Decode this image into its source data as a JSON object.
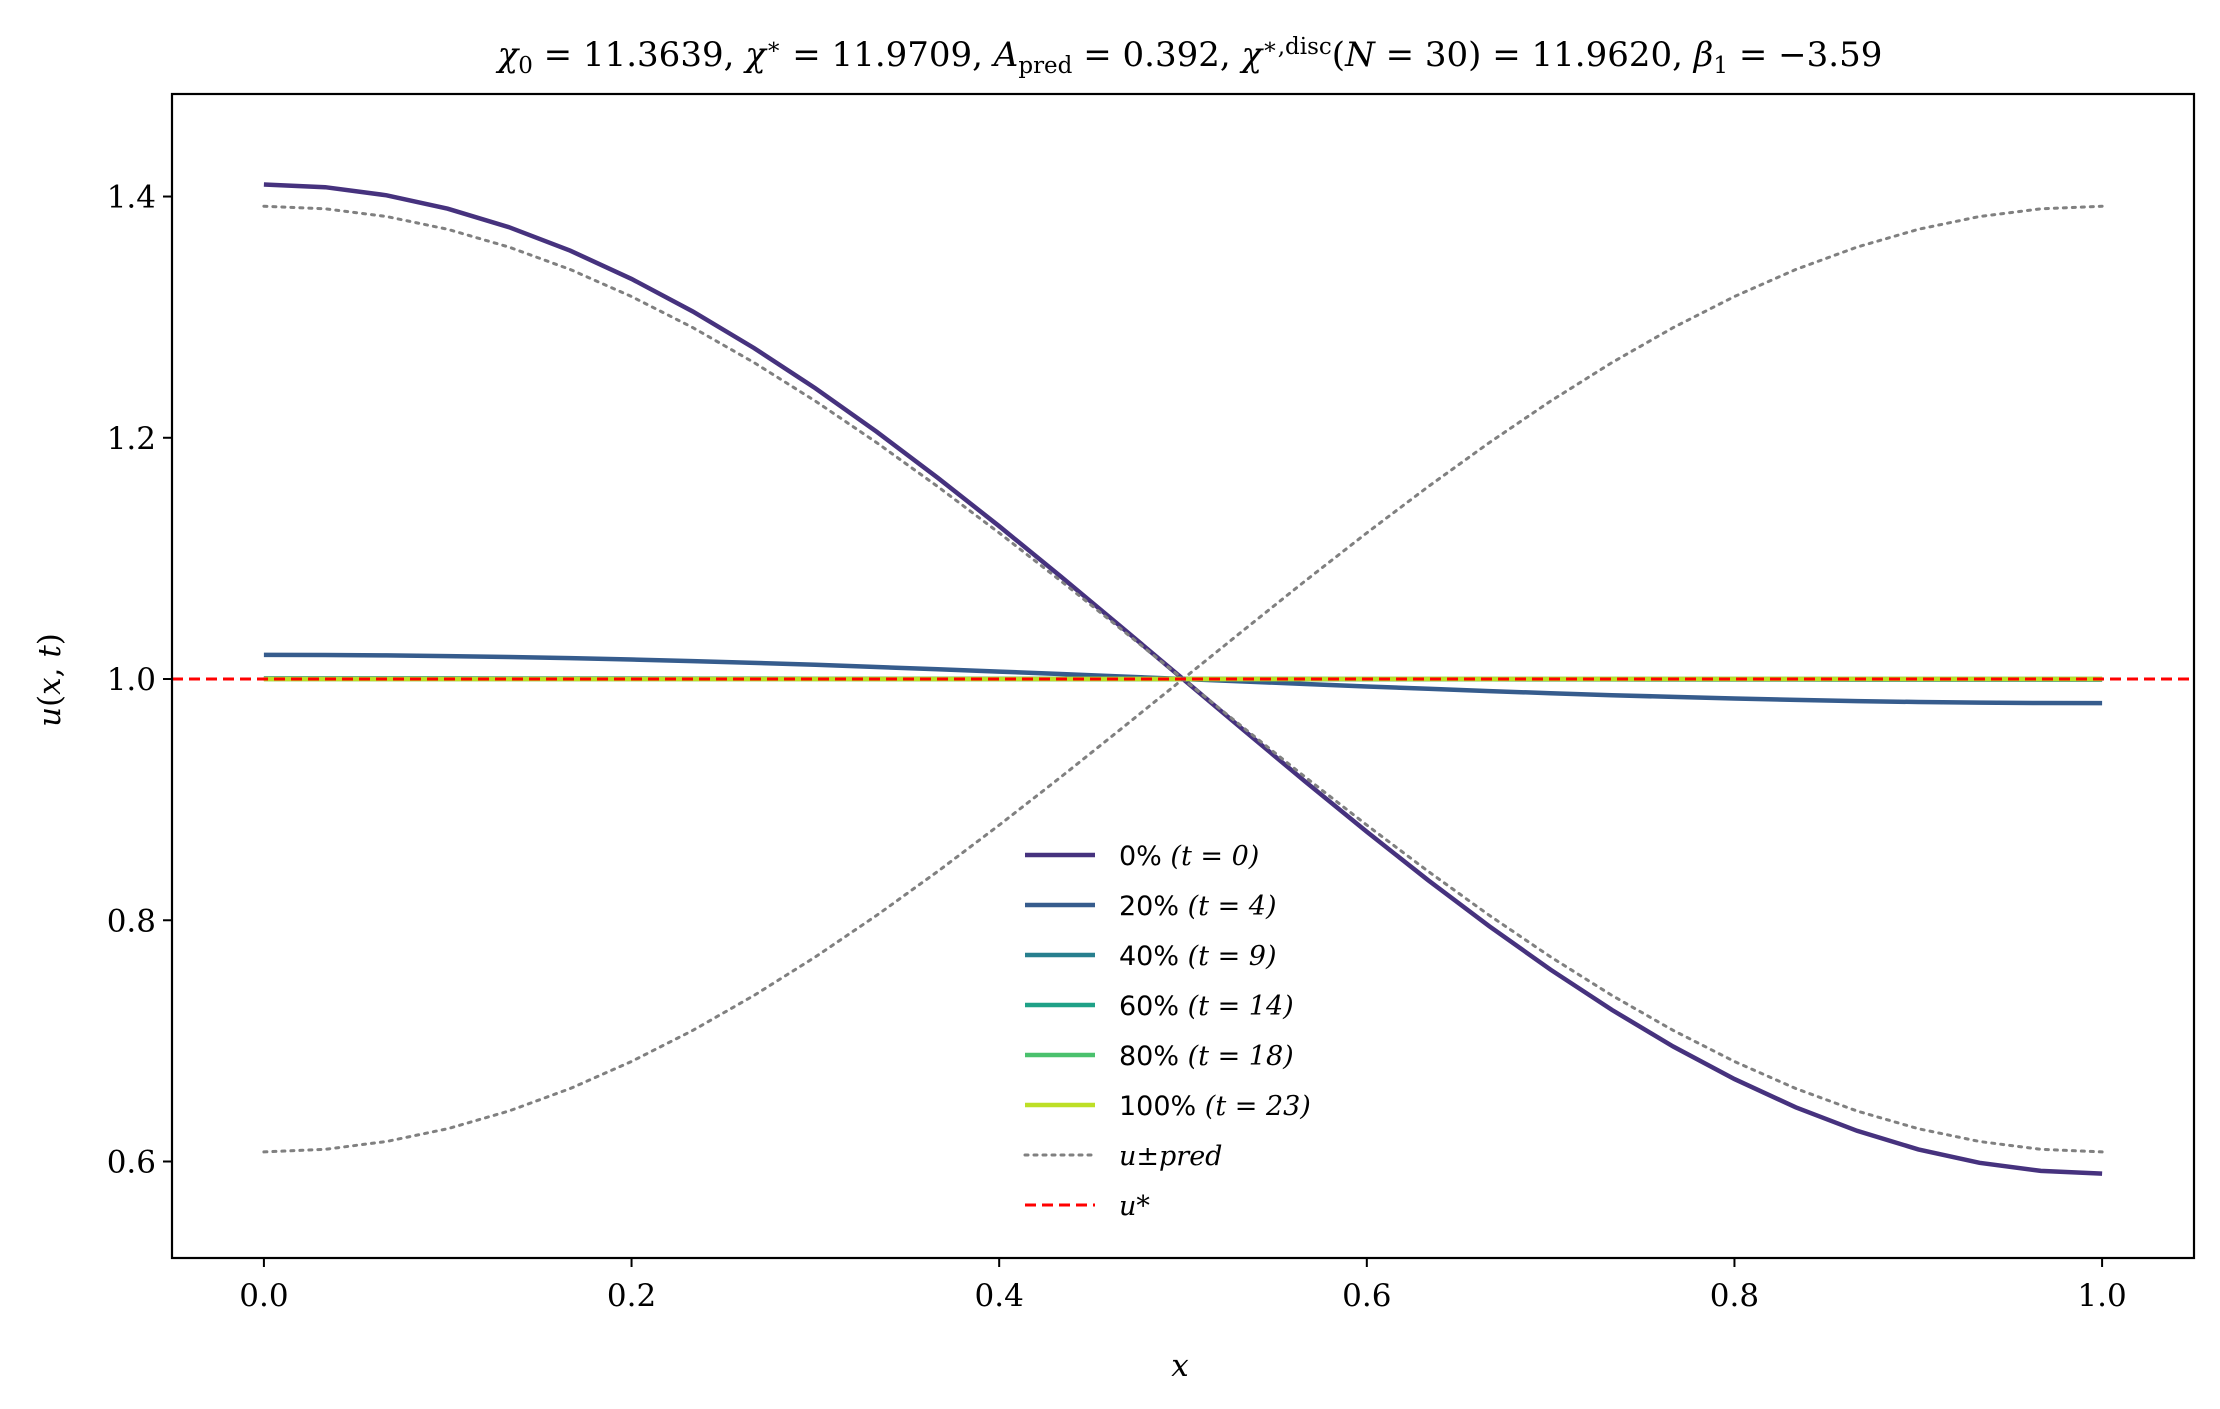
{
  "chart_data": {
    "type": "line",
    "title": "χ₀ = 11.3639,  χ* = 11.9709,  A_pred = 0.392,  χ*,disc(N = 30) = 11.9620,  β₁ = −3.59",
    "xlabel": "x",
    "ylabel": "u(x, t)",
    "xlim": [
      -0.05,
      1.05
    ],
    "ylim": [
      0.52,
      1.485
    ],
    "xticks": [
      0.0,
      0.2,
      0.4,
      0.6,
      0.8,
      1.0
    ],
    "xtick_labels": [
      "0.0",
      "0.2",
      "0.4",
      "0.6",
      "0.8",
      "1.0"
    ],
    "yticks": [
      0.6,
      0.8,
      1.0,
      1.2,
      1.4
    ],
    "ytick_labels": [
      "0.6",
      "0.8",
      "1.0",
      "1.2",
      "1.4"
    ],
    "grid": false,
    "legend_position": "lower-center",
    "series": [
      {
        "name": "0% (t = 0)",
        "color": "#46327e",
        "style": "solid",
        "amplitude": 0.41
      },
      {
        "name": "20% (t = 4)",
        "color": "#365c8d",
        "style": "solid",
        "amplitude": 0.02
      },
      {
        "name": "40% (t = 9)",
        "color": "#277f8e",
        "style": "solid",
        "amplitude": 0.0005
      },
      {
        "name": "60% (t = 14)",
        "color": "#1fa187",
        "style": "solid",
        "amplitude": 0.0001
      },
      {
        "name": "80% (t = 18)",
        "color": "#4ac16d",
        "style": "solid",
        "amplitude": 0.0
      },
      {
        "name": "100% (t = 23)",
        "color": "#bddf26",
        "style": "solid",
        "amplitude": 0.0
      },
      {
        "name": "u±pred (+)",
        "color": "#808080",
        "style": "dotted",
        "amplitude": 0.392
      },
      {
        "name": "u±pred (−)",
        "color": "#808080",
        "style": "dotted",
        "amplitude": -0.392
      },
      {
        "name": "u*",
        "color": "#ff0000",
        "style": "dashed",
        "constant": 1.0
      }
    ],
    "legend": [
      {
        "label": "0%",
        "math": "(t = 0)",
        "color": "#46327e",
        "style": "solid"
      },
      {
        "label": "20%",
        "math": "(t = 4)",
        "color": "#365c8d",
        "style": "solid"
      },
      {
        "label": "40%",
        "math": "(t = 9)",
        "color": "#277f8e",
        "style": "solid"
      },
      {
        "label": "60%",
        "math": "(t = 14)",
        "color": "#1fa187",
        "style": "solid"
      },
      {
        "label": "80%",
        "math": "(t = 18)",
        "color": "#4ac16d",
        "style": "solid"
      },
      {
        "label": "100%",
        "math": "(t = 23)",
        "color": "#bddf26",
        "style": "solid"
      },
      {
        "label": "",
        "math": "u±pred",
        "color": "#808080",
        "style": "dotted"
      },
      {
        "label": "",
        "math": "u*",
        "color": "#ff0000",
        "style": "dashed"
      }
    ]
  }
}
